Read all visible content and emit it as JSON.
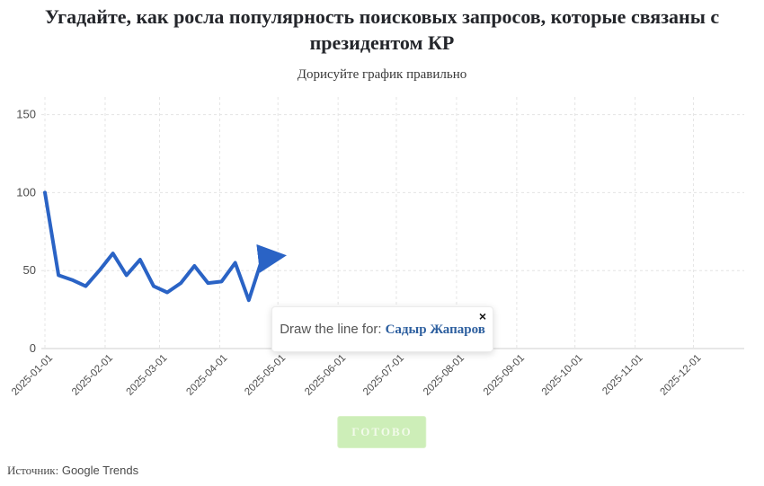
{
  "header": {
    "title": "Угадайте, как росла популярность поисковых запросов, которые связаны с президентом КР",
    "subtitle": "Дорисуйте график правильно"
  },
  "chart_data": {
    "type": "line",
    "title": "",
    "xlabel": "",
    "ylabel": "",
    "grid": true,
    "legend_position": "none",
    "ylim": [
      0,
      160
    ],
    "y_ticks": [
      0,
      50,
      100,
      150
    ],
    "x_ticks": [
      "2025-01-01",
      "2025-02-01",
      "2025-03-01",
      "2025-04-01",
      "2025-05-01",
      "2025-06-01",
      "2025-07-01",
      "2025-08-01",
      "2025-09-01",
      "2025-10-01",
      "2025-11-01",
      "2025-12-01"
    ],
    "x_range": [
      "2025-01-01",
      "2026-01-01"
    ],
    "series": [
      {
        "name": "Садыр Жапаров",
        "x": [
          "2025-01-01",
          "2025-01-08",
          "2025-01-15",
          "2025-01-22",
          "2025-01-29",
          "2025-02-05",
          "2025-02-12",
          "2025-02-19",
          "2025-02-26",
          "2025-03-05",
          "2025-03-12",
          "2025-03-19",
          "2025-03-26",
          "2025-04-02",
          "2025-04-09",
          "2025-04-16",
          "2025-04-23",
          "2025-04-30"
        ],
        "values": [
          100,
          47,
          44,
          40,
          50,
          61,
          47,
          57,
          40,
          36,
          42,
          53,
          42,
          43,
          55,
          31,
          58,
          59
        ]
      }
    ],
    "line_color": "#2a63c5",
    "arrow_end": true
  },
  "tooltip": {
    "prompt": "Draw the line for:",
    "target": "Садыр Жапаров",
    "close_label": "×"
  },
  "button": {
    "label": "ГОТОВО"
  },
  "source": {
    "prefix": "Источник:",
    "value": "Google Trends"
  }
}
